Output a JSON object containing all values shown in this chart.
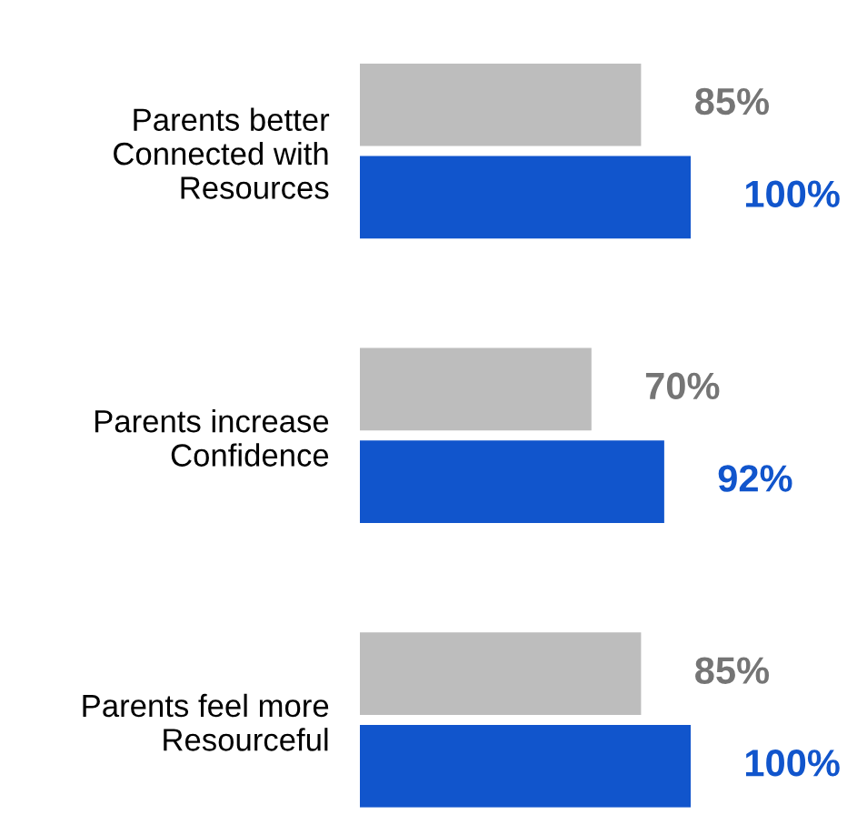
{
  "chart_data": {
    "type": "bar",
    "orientation": "horizontal",
    "categories": [
      "Parents better\nConnected with\nResources",
      "Parents increase\nConfidence",
      "Parents feel more\nResourceful"
    ],
    "series": [
      {
        "color": "#bdbdbd",
        "values": [
          85,
          70,
          85
        ],
        "value_labels": [
          "85%",
          "70%",
          "85%"
        ]
      },
      {
        "color": "#1155cc",
        "values": [
          100,
          92,
          100
        ],
        "value_labels": [
          "100%",
          "92%",
          "100%"
        ]
      }
    ],
    "grid": false,
    "legend": false
  }
}
